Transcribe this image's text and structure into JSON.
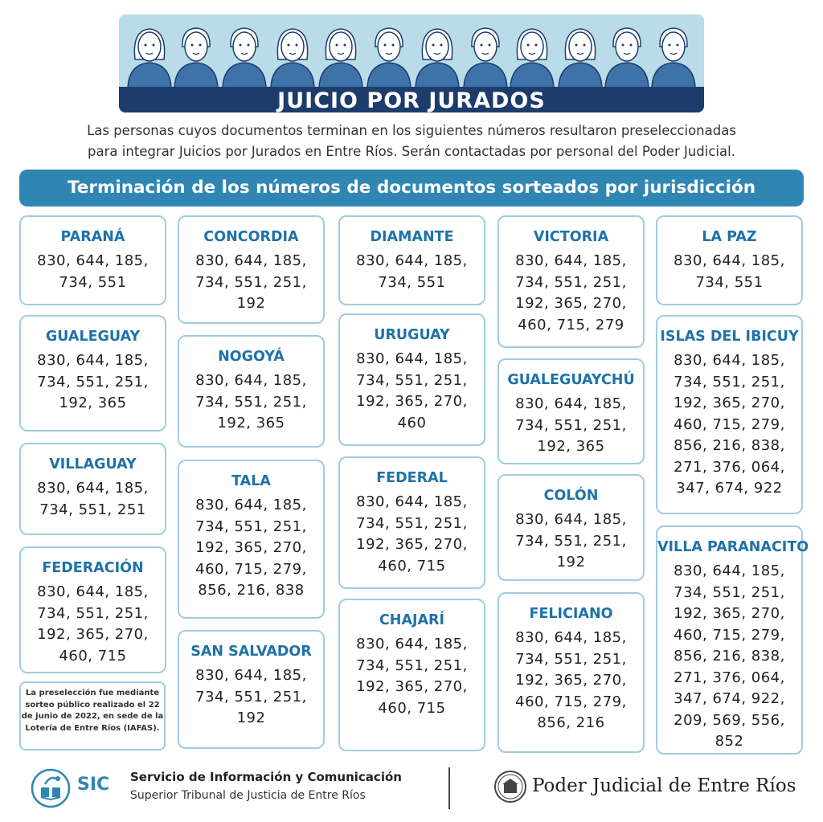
{
  "header": {
    "title": "JUICIO POR JURADOS",
    "intro_line1": "Las personas cuyos documentos terminan en los siguientes números resultaron preseleccionadas",
    "intro_line2": "para integrar Juicios por Jurados en Entre Ríos. Serán contactadas por personal del Poder Judicial."
  },
  "section_title": "Terminación de los números de documentos sorteados por jurisdicción",
  "jurisdictions": [
    {
      "name": "PARANÁ",
      "numbers": "830, 644, 185, 734, 551"
    },
    {
      "name": "GUALEGUAY",
      "numbers": "830, 644, 185, 734, 551, 251, 192, 365"
    },
    {
      "name": "VILLAGUAY",
      "numbers": "830, 644, 185, 734, 551, 251"
    },
    {
      "name": "FEDERACIÓN",
      "numbers": "830, 644, 185, 734, 551, 251, 192, 365, 270, 460, 715"
    },
    {
      "name": "CONCORDIA",
      "numbers": "830, 644, 185, 734, 551, 251, 192"
    },
    {
      "name": "NOGOYÁ",
      "numbers": "830, 644, 185, 734, 551, 251, 192, 365"
    },
    {
      "name": "TALA",
      "numbers": "830, 644, 185, 734, 551, 251, 192, 365, 270, 460, 715, 279, 856, 216, 838"
    },
    {
      "name": "SAN SALVADOR",
      "numbers": "830, 644, 185, 734, 551, 251, 192"
    },
    {
      "name": "DIAMANTE",
      "numbers": "830, 644, 185, 734, 551"
    },
    {
      "name": "URUGUAY",
      "numbers": "830, 644, 185, 734, 551, 251, 192, 365, 270, 460"
    },
    {
      "name": "FEDERAL",
      "numbers": "830, 644, 185, 734, 551, 251, 192, 365, 270, 460, 715"
    },
    {
      "name": "CHAJARÍ",
      "numbers": "830, 644, 185, 734, 551, 251, 192, 365, 270, 460, 715"
    },
    {
      "name": "VICTORIA",
      "numbers": "830, 644, 185, 734, 551, 251, 192, 365, 270, 460, 715, 279"
    },
    {
      "name": "GUALEGUAYCHÚ",
      "numbers": "830, 644, 185, 734, 551, 251, 192, 365"
    },
    {
      "name": "COLÓN",
      "numbers": "830, 644, 185, 734, 551, 251, 192"
    },
    {
      "name": "FELICIANO",
      "numbers": "830, 644, 185, 734, 551, 251, 192, 365, 270, 460, 715, 279, 856, 216"
    },
    {
      "name": "LA PAZ",
      "numbers": "830, 644, 185, 734, 551"
    },
    {
      "name": "ISLAS DEL IBICUY",
      "numbers": "830, 644, 185, 734, 551, 251, 192, 365, 270, 460, 715, 279, 856, 216,  838, 271, 376, 064, 347, 674, 922"
    },
    {
      "name": "VILLA PARANACITO",
      "numbers": "830, 644, 185, 734, 551, 251, 192, 365, 270, 460, 715, 279, 856, 216, 838, 271, 376, 064, 347, 674, 922, 209, 569, 556, 852"
    }
  ],
  "note": "La preselección fue mediante sorteo público realizado el 22 de junio de 2022, en sede de la Lotería de Entre Ríos (IAFAS).",
  "footer": {
    "sic_short": "SIC",
    "sic_title": "Servicio de Información y Comunicación",
    "sic_subtitle": "Superior Tribunal de Justicia de Entre Ríos",
    "pj_name": "Poder Judicial de Entre Ríos"
  },
  "colors": {
    "banner_bg": "#b9dce8",
    "title_bar": "#1d3c6c",
    "section_bar": "#2f86b3",
    "card_border": "#9fcde0",
    "jurisdiction_name": "#1f72a8"
  },
  "icons": [
    "people-illustration",
    "sic-logo-icon",
    "poder-judicial-seal-icon"
  ]
}
